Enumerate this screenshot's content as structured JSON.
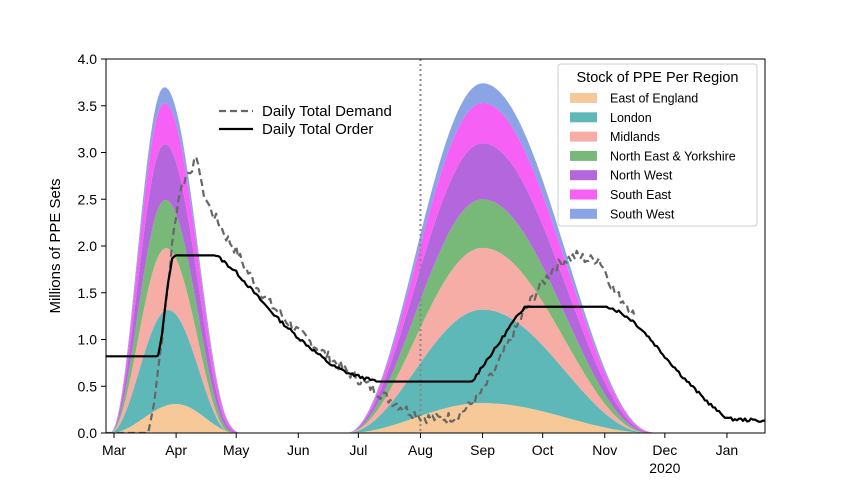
{
  "chart_data": {
    "type": "area",
    "ylabel": "Millions of PPE Sets",
    "xlabel": "",
    "ylim": [
      0,
      4.0
    ],
    "xlim": [
      "2020-02-26",
      "2021-01-20"
    ],
    "yticks": [
      {
        "v": 0.0,
        "label": "0.0"
      },
      {
        "v": 0.5,
        "label": "0.5"
      },
      {
        "v": 1.0,
        "label": "1.0"
      },
      {
        "v": 1.5,
        "label": "1.5"
      },
      {
        "v": 2.0,
        "label": "2.0"
      },
      {
        "v": 2.5,
        "label": "2.5"
      },
      {
        "v": 3.0,
        "label": "3.0"
      },
      {
        "v": 3.5,
        "label": "3.5"
      },
      {
        "v": 4.0,
        "label": "4.0"
      }
    ],
    "xticks": [
      {
        "date": "2020-03-01",
        "label": "Mar"
      },
      {
        "date": "2020-04-01",
        "label": "Apr"
      },
      {
        "date": "2020-05-01",
        "label": "May"
      },
      {
        "date": "2020-06-01",
        "label": "Jun"
      },
      {
        "date": "2020-07-01",
        "label": "Jul"
      },
      {
        "date": "2020-08-01",
        "label": "Aug"
      },
      {
        "date": "2020-09-01",
        "label": "Sep"
      },
      {
        "date": "2020-10-01",
        "label": "Oct"
      },
      {
        "date": "2020-11-01",
        "label": "Nov"
      },
      {
        "date": "2020-12-01",
        "label": "Dec",
        "sublabel": "2020"
      },
      {
        "date": "2021-01-01",
        "label": "Jan"
      }
    ],
    "vline": {
      "date": "2020-08-01",
      "style": "dotted",
      "color": "#888888"
    },
    "legend_stock": {
      "title": "Stock of PPE Per Region",
      "placement": "top-right",
      "entries": [
        "East of England",
        "London",
        "Midlands",
        "North East & Yorkshire",
        "North West",
        "South East",
        "South West"
      ]
    },
    "legend_lines": {
      "placement": "upper-center-left",
      "entries": [
        "Daily Total Demand",
        "Daily Total Order"
      ]
    },
    "stack_series": [
      {
        "name": "East of England",
        "color": "#f8c998",
        "wave1": {
          "start": "2020-02-28",
          "peak": "2020-04-01",
          "end": "2020-05-01",
          "value": 0.31
        },
        "wave2": {
          "start": "2020-06-25",
          "peak": "2020-09-01",
          "end": "2020-11-25",
          "value": 0.32
        }
      },
      {
        "name": "London",
        "color": "#5fb8b8",
        "wave1": {
          "start": "2020-02-28",
          "peak": "2020-03-27",
          "end": "2020-04-27",
          "value": 1.02
        },
        "wave2": {
          "start": "2020-06-25",
          "peak": "2020-09-01",
          "end": "2020-11-22",
          "value": 1.0
        }
      },
      {
        "name": "Midlands",
        "color": "#f6ada6",
        "wave1": {
          "start": "2020-02-28",
          "peak": "2020-03-25",
          "end": "2020-04-27",
          "value": 0.67
        },
        "wave2": {
          "start": "2020-06-25",
          "peak": "2020-09-01",
          "end": "2020-11-22",
          "value": 0.66
        }
      },
      {
        "name": "North East & Yorkshire",
        "color": "#78b879",
        "wave1": {
          "start": "2020-02-28",
          "peak": "2020-03-25",
          "end": "2020-05-02",
          "value": 0.52
        },
        "wave2": {
          "start": "2020-06-25",
          "peak": "2020-09-01",
          "end": "2020-11-26",
          "value": 0.52
        }
      },
      {
        "name": "North West",
        "color": "#b466dc",
        "wave1": {
          "start": "2020-02-28",
          "peak": "2020-03-25",
          "end": "2020-05-03",
          "value": 0.6
        },
        "wave2": {
          "start": "2020-06-25",
          "peak": "2020-09-01",
          "end": "2020-11-28",
          "value": 0.6
        }
      },
      {
        "name": "South East",
        "color": "#f760f5",
        "wave1": {
          "start": "2020-02-28",
          "peak": "2020-03-25",
          "end": "2020-05-05",
          "value": 0.44
        },
        "wave2": {
          "start": "2020-06-25",
          "peak": "2020-09-01",
          "end": "2020-11-30",
          "value": 0.43
        }
      },
      {
        "name": "South West",
        "color": "#8aa4e6",
        "wave1": {
          "start": "2020-02-28",
          "peak": "2020-03-24",
          "end": "2020-05-04",
          "value": 0.17
        },
        "wave2": {
          "start": "2020-06-25",
          "peak": "2020-09-02",
          "end": "2020-11-26",
          "value": 0.21
        }
      }
    ],
    "demand": {
      "name": "Daily Total Demand",
      "color": "#666666",
      "style": "dashed",
      "points": [
        [
          "2020-02-26",
          0.0
        ],
        [
          "2020-03-18",
          0.0
        ],
        [
          "2020-03-20",
          0.2
        ],
        [
          "2020-03-24",
          0.85
        ],
        [
          "2020-03-27",
          1.4
        ],
        [
          "2020-03-30",
          2.0
        ],
        [
          "2020-04-01",
          2.35
        ],
        [
          "2020-04-03",
          2.6
        ],
        [
          "2020-04-06",
          2.75
        ],
        [
          "2020-04-09",
          2.85
        ],
        [
          "2020-04-12",
          2.92
        ],
        [
          "2020-04-14",
          2.6
        ],
        [
          "2020-04-18",
          2.4
        ],
        [
          "2020-04-22",
          2.25
        ],
        [
          "2020-04-26",
          2.1
        ],
        [
          "2020-05-01",
          1.95
        ],
        [
          "2020-05-06",
          1.75
        ],
        [
          "2020-05-12",
          1.55
        ],
        [
          "2020-05-18",
          1.38
        ],
        [
          "2020-05-24",
          1.25
        ],
        [
          "2020-06-01",
          1.08
        ],
        [
          "2020-06-10",
          0.92
        ],
        [
          "2020-06-18",
          0.78
        ],
        [
          "2020-06-26",
          0.65
        ],
        [
          "2020-07-05",
          0.52
        ],
        [
          "2020-07-15",
          0.38
        ],
        [
          "2020-07-25",
          0.25
        ],
        [
          "2020-08-02",
          0.17
        ],
        [
          "2020-08-10",
          0.15
        ],
        [
          "2020-08-18",
          0.18
        ],
        [
          "2020-08-25",
          0.28
        ],
        [
          "2020-09-01",
          0.45
        ],
        [
          "2020-09-08",
          0.7
        ],
        [
          "2020-09-15",
          1.0
        ],
        [
          "2020-09-22",
          1.3
        ],
        [
          "2020-09-29",
          1.55
        ],
        [
          "2020-10-06",
          1.75
        ],
        [
          "2020-10-12",
          1.85
        ],
        [
          "2020-10-18",
          1.9
        ],
        [
          "2020-10-24",
          1.85
        ],
        [
          "2020-10-29",
          1.87
        ],
        [
          "2020-11-02",
          1.7
        ],
        [
          "2020-11-06",
          1.5
        ],
        [
          "2020-11-12",
          1.38
        ],
        [
          "2020-11-16",
          1.25
        ]
      ]
    },
    "order": {
      "name": "Daily Total Order",
      "color": "#000000",
      "style": "solid",
      "points": [
        [
          "2020-02-26",
          0.82
        ],
        [
          "2020-03-23",
          0.82
        ],
        [
          "2020-03-25",
          1.05
        ],
        [
          "2020-03-27",
          1.45
        ],
        [
          "2020-03-30",
          1.88
        ],
        [
          "2020-04-01",
          1.9
        ],
        [
          "2020-04-21",
          1.9
        ],
        [
          "2020-04-25",
          1.83
        ],
        [
          "2020-05-01",
          1.72
        ],
        [
          "2020-05-08",
          1.55
        ],
        [
          "2020-05-15",
          1.38
        ],
        [
          "2020-05-22",
          1.22
        ],
        [
          "2020-06-01",
          1.02
        ],
        [
          "2020-06-10",
          0.86
        ],
        [
          "2020-06-18",
          0.72
        ],
        [
          "2020-06-26",
          0.64
        ],
        [
          "2020-07-05",
          0.58
        ],
        [
          "2020-07-10",
          0.55
        ],
        [
          "2020-08-27",
          0.55
        ],
        [
          "2020-09-01",
          0.72
        ],
        [
          "2020-09-08",
          0.92
        ],
        [
          "2020-09-15",
          1.15
        ],
        [
          "2020-09-22",
          1.35
        ],
        [
          "2020-11-03",
          1.35
        ],
        [
          "2020-11-08",
          1.3
        ],
        [
          "2020-11-15",
          1.2
        ],
        [
          "2020-11-22",
          1.05
        ],
        [
          "2020-12-01",
          0.82
        ],
        [
          "2020-12-10",
          0.6
        ],
        [
          "2020-12-20",
          0.38
        ],
        [
          "2020-12-28",
          0.22
        ],
        [
          "2021-01-02",
          0.15
        ],
        [
          "2021-01-20",
          0.13
        ]
      ]
    }
  }
}
